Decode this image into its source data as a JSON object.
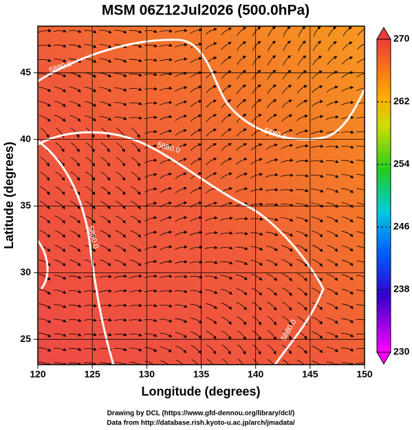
{
  "title": "MSM 06Z12Jul2026 (500.0hPa)",
  "x_axis": {
    "label": "Longitude (degrees)",
    "lim": [
      120,
      150
    ],
    "ticks": [
      120,
      125,
      130,
      135,
      140,
      145,
      150
    ]
  },
  "y_axis": {
    "label": "Latitude  (degrees)",
    "lim": [
      23.1,
      48.5
    ],
    "ticks": [
      25,
      30,
      35,
      40,
      45
    ]
  },
  "colorbar": {
    "lim": [
      230,
      270
    ],
    "ticks": [
      230,
      238,
      246,
      254,
      262,
      270
    ]
  },
  "contour_labels": [
    "5880.0",
    "5880.0",
    "5880.0",
    "5880.0",
    "5880.0"
  ],
  "credits": [
    "Drawing by DCL (https://www.gfd-dennou.org/library/dcl/)",
    "Data from http://database.rish.kyoto-u.ac.jp/arch/jmadata/"
  ]
}
